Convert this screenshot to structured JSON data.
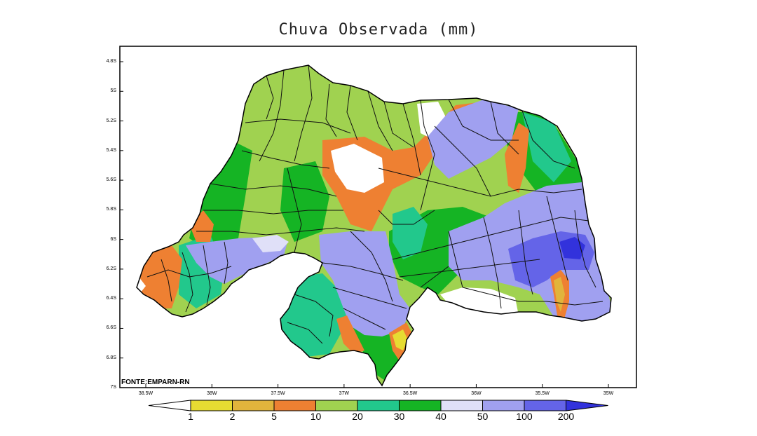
{
  "title": "Chuva Observada (mm)",
  "source": "FONTE:EMPARN-RN",
  "axes": {
    "lat_ticks": [
      "4.8S",
      "5S",
      "5.2S",
      "5.4S",
      "5.6S",
      "5.8S",
      "6S",
      "6.2S",
      "6.4S",
      "6.6S",
      "6.8S",
      "7S"
    ],
    "lon_ticks": [
      "38.5W",
      "38W",
      "37.5W",
      "37W",
      "36.5W",
      "36W",
      "35.5W",
      "35W"
    ]
  },
  "legend": {
    "labels": [
      "1",
      "2",
      "5",
      "10",
      "20",
      "30",
      "40",
      "50",
      "100",
      "200"
    ],
    "colors": [
      "#ffffff",
      "#e6dc32",
      "#e1b43c",
      "#ee8032",
      "#a0d250",
      "#22c88c",
      "#15b424",
      "#e0e0f8",
      "#a0a0f0",
      "#6464e8",
      "#3232dc"
    ]
  },
  "colors": {
    "white": "#ffffff",
    "yellow": "#e6dc32",
    "gold": "#e1b43c",
    "orange": "#ee8032",
    "lightgreen": "#a0d250",
    "teal": "#22c88c",
    "green": "#15b424",
    "lavender": "#e0e0f8",
    "periwinkle": "#a0a0f0",
    "blue": "#6464e8",
    "darkblue": "#3232dc"
  }
}
